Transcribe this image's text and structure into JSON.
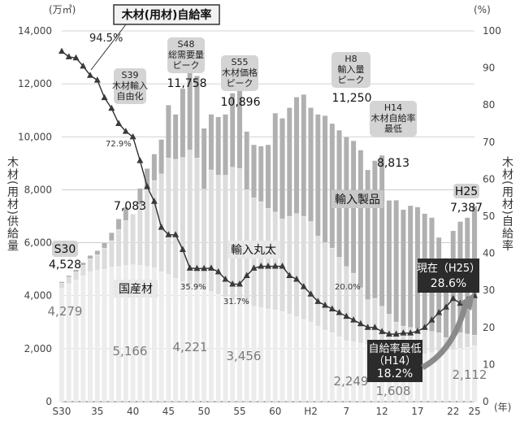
{
  "chart_data": {
    "type": "bar",
    "title": "木材(用材)自給率",
    "y_left_unit": "(万㎥)",
    "y_right_unit": "(%)",
    "x_unit": "(年)",
    "ylabel_left": "木材(用材)供給量",
    "ylabel_right": "木材(用材)自給率",
    "ylim_left": [
      0,
      14000
    ],
    "ylim_right": [
      0,
      100
    ],
    "y_left_ticks": [
      "0",
      "2,000",
      "4,000",
      "6,000",
      "8,000",
      "10,000",
      "12,000",
      "14,000"
    ],
    "y_right_ticks": [
      "0",
      "10",
      "20",
      "30",
      "40",
      "50",
      "60",
      "70",
      "80",
      "90",
      "100"
    ],
    "x_ticks": [
      {
        "label": "S30",
        "year": 1955
      },
      {
        "label": "35",
        "year": 1960
      },
      {
        "label": "40",
        "year": 1965
      },
      {
        "label": "45",
        "year": 1970
      },
      {
        "label": "50",
        "year": 1975
      },
      {
        "label": "55",
        "year": 1980
      },
      {
        "label": "60",
        "year": 1985
      },
      {
        "label": "H2",
        "year": 1990
      },
      {
        "label": "7",
        "year": 1995
      },
      {
        "label": "12",
        "year": 2000
      },
      {
        "label": "17",
        "year": 2005
      },
      {
        "label": "22",
        "year": 2010
      },
      {
        "label": "25",
        "year": 2013
      }
    ],
    "years": [
      1955,
      1956,
      1957,
      1958,
      1959,
      1960,
      1961,
      1962,
      1963,
      1964,
      1965,
      1966,
      1967,
      1968,
      1969,
      1970,
      1971,
      1972,
      1973,
      1974,
      1975,
      1976,
      1977,
      1978,
      1979,
      1980,
      1981,
      1982,
      1983,
      1984,
      1985,
      1986,
      1987,
      1988,
      1989,
      1990,
      1991,
      1992,
      1993,
      1994,
      1995,
      1996,
      1997,
      1998,
      1999,
      2000,
      2001,
      2002,
      2003,
      2004,
      2005,
      2006,
      2007,
      2008,
      2009,
      2010,
      2011,
      2012,
      2013
    ],
    "series": [
      {
        "name": "国産材",
        "values": [
          4279,
          4450,
          4600,
          4750,
          4900,
          4950,
          5000,
          5080,
          5100,
          5140,
          5166,
          5150,
          5100,
          5050,
          4900,
          4800,
          4650,
          4520,
          4400,
          4300,
          4221,
          4150,
          4050,
          3950,
          3850,
          3800,
          3700,
          3600,
          3550,
          3500,
          3456,
          3400,
          3300,
          3200,
          3100,
          3000,
          2850,
          2700,
          2600,
          2450,
          2300,
          2250,
          2200,
          2150,
          2100,
          1900,
          1800,
          1608,
          1650,
          1700,
          1750,
          1800,
          1850,
          1900,
          1920,
          1950,
          2000,
          2050,
          2112
        ]
      },
      {
        "name": "輸入丸太",
        "values": [
          200,
          250,
          300,
          400,
          500,
          600,
          800,
          1000,
          1400,
          1700,
          1917,
          2300,
          2900,
          3300,
          3700,
          4400,
          4500,
          4700,
          5100,
          4900,
          3800,
          4600,
          4500,
          4600,
          5000,
          5000,
          4300,
          4100,
          4000,
          3800,
          3700,
          3500,
          3700,
          3900,
          3900,
          3800,
          3400,
          3300,
          3200,
          3000,
          2800,
          2600,
          2100,
          1700,
          1800,
          1700,
          1500,
          1400,
          1200,
          1100,
          1000,
          900,
          800,
          700,
          500,
          600,
          600,
          500,
          400
        ]
      },
      {
        "name": "輸入製品",
        "values": [
          49,
          60,
          80,
          100,
          120,
          150,
          200,
          300,
          400,
          500,
          0,
          600,
          800,
          1000,
          1300,
          2000,
          1700,
          2600,
          3200,
          3100,
          2300,
          2100,
          2200,
          2300,
          2800,
          3100,
          2200,
          2000,
          2100,
          2400,
          3740,
          3800,
          4100,
          4400,
          4600,
          4300,
          4600,
          4800,
          4700,
          4800,
          4900,
          5000,
          5200,
          4900,
          5200,
          5700,
          4300,
          4600,
          4400,
          4600,
          4600,
          4400,
          4300,
          3600,
          3000,
          3900,
          4200,
          4400,
          4875
        ]
      }
    ],
    "totals_labeled": [
      {
        "label": "S30",
        "value": "4,528"
      },
      {
        "value": "7,083"
      },
      {
        "value": "11,758"
      },
      {
        "value": "10,896"
      },
      {
        "value": "11,250"
      },
      {
        "value": "8,813"
      },
      {
        "label": "H25",
        "value": "7,387"
      }
    ],
    "domestic_labeled": [
      "4,279",
      "5,166",
      "4,221",
      "3,456",
      "2,249",
      "1,608",
      "2,112"
    ],
    "self_sufficiency_rate": {
      "name": "木材(用材)自給率",
      "values": [
        94.5,
        93.0,
        92.7,
        90.5,
        88.0,
        86.7,
        82.0,
        79.1,
        75.0,
        72.9,
        71.4,
        65.0,
        58.0,
        54.0,
        47.0,
        45.0,
        45.0,
        41.0,
        36.0,
        35.9,
        35.9,
        36.0,
        35.0,
        33.0,
        31.7,
        31.7,
        34.0,
        36.0,
        36.5,
        36.5,
        36.5,
        36.5,
        34.0,
        33.0,
        31.0,
        29.0,
        27.0,
        26.0,
        25.0,
        24.0,
        23.0,
        22.0,
        21.0,
        20.0,
        20.0,
        18.9,
        18.2,
        18.2,
        18.5,
        18.5,
        19.0,
        20.0,
        22.0,
        24.0,
        25.5,
        27.8,
        26.5,
        27.5,
        28.6
      ]
    },
    "annotations": {
      "s39": [
        "S39",
        "木材輸入",
        "自由化"
      ],
      "s48": [
        "S48",
        "総需要量",
        "ピーク"
      ],
      "s55": [
        "S55",
        "木材価格",
        "ピーク"
      ],
      "h8": [
        "H8",
        "輸入量",
        "ピーク"
      ],
      "h14": [
        "H14",
        "木材自給率",
        "最低"
      ],
      "label_imports_product": "輸入製品",
      "label_imports_logs": "輸入丸太",
      "label_domestic": "国産材",
      "current": [
        "現在（H25）",
        "28.6%"
      ],
      "lowest": [
        "自給率最低",
        "（H14）",
        "18.2%"
      ],
      "pct_labels": [
        "94.5%",
        "72.9%",
        "35.9%",
        "31.7%",
        "20.0%"
      ]
    }
  }
}
